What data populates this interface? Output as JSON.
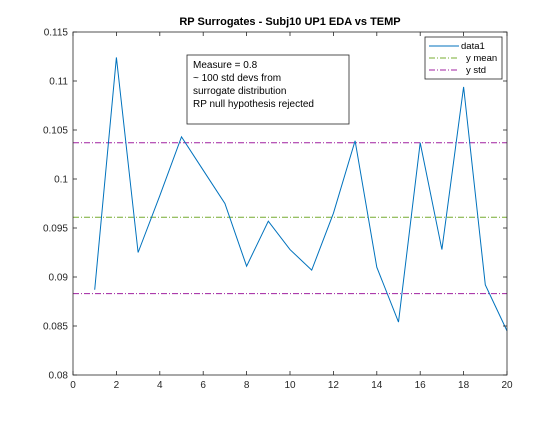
{
  "chart_data": {
    "type": "line",
    "title": "RP Surrogates - Subj10 UP1 EDA vs TEMP",
    "xlabel": "",
    "ylabel": "",
    "xlim": [
      0,
      20
    ],
    "ylim": [
      0.08,
      0.115
    ],
    "x_ticks": [
      "0",
      "2",
      "4",
      "6",
      "8",
      "10",
      "12",
      "14",
      "16",
      "18",
      "20"
    ],
    "y_ticks": [
      "0.08",
      "0.085",
      "0.09",
      "0.095",
      "0.1",
      "0.105",
      "0.11",
      "0.115"
    ],
    "grid": false,
    "legend_position": "top-right",
    "series": [
      {
        "name": "data1",
        "color": "#0072bd",
        "x": [
          1,
          2,
          3,
          4,
          5,
          6,
          7,
          8,
          9,
          10,
          11,
          12,
          13,
          14,
          15,
          16,
          17,
          18,
          19,
          20
        ],
        "y": [
          0.0887,
          0.1124,
          0.0925,
          0.0983,
          0.1043,
          0.1009,
          0.0975,
          0.0911,
          0.0957,
          0.0928,
          0.0907,
          0.0965,
          0.1039,
          0.091,
          0.0854,
          0.1037,
          0.0928,
          0.1094,
          0.0892,
          0.0845
        ]
      }
    ],
    "reference_lines": [
      {
        "name": "y mean",
        "value": 0.0961,
        "color": "#77ac30",
        "style": "dash-dot"
      },
      {
        "name": "y std",
        "value": 0.1037,
        "color": "#a020a0",
        "style": "dash-dot"
      },
      {
        "name": "y std",
        "value": 0.0883,
        "color": "#a020a0",
        "style": "dash-dot",
        "in_legend": false
      }
    ],
    "annotation": [
      "Measure = 0.8",
      "~ 100 std devs from",
      "surrogate distribution",
      "RP null hypothesis rejected"
    ]
  }
}
